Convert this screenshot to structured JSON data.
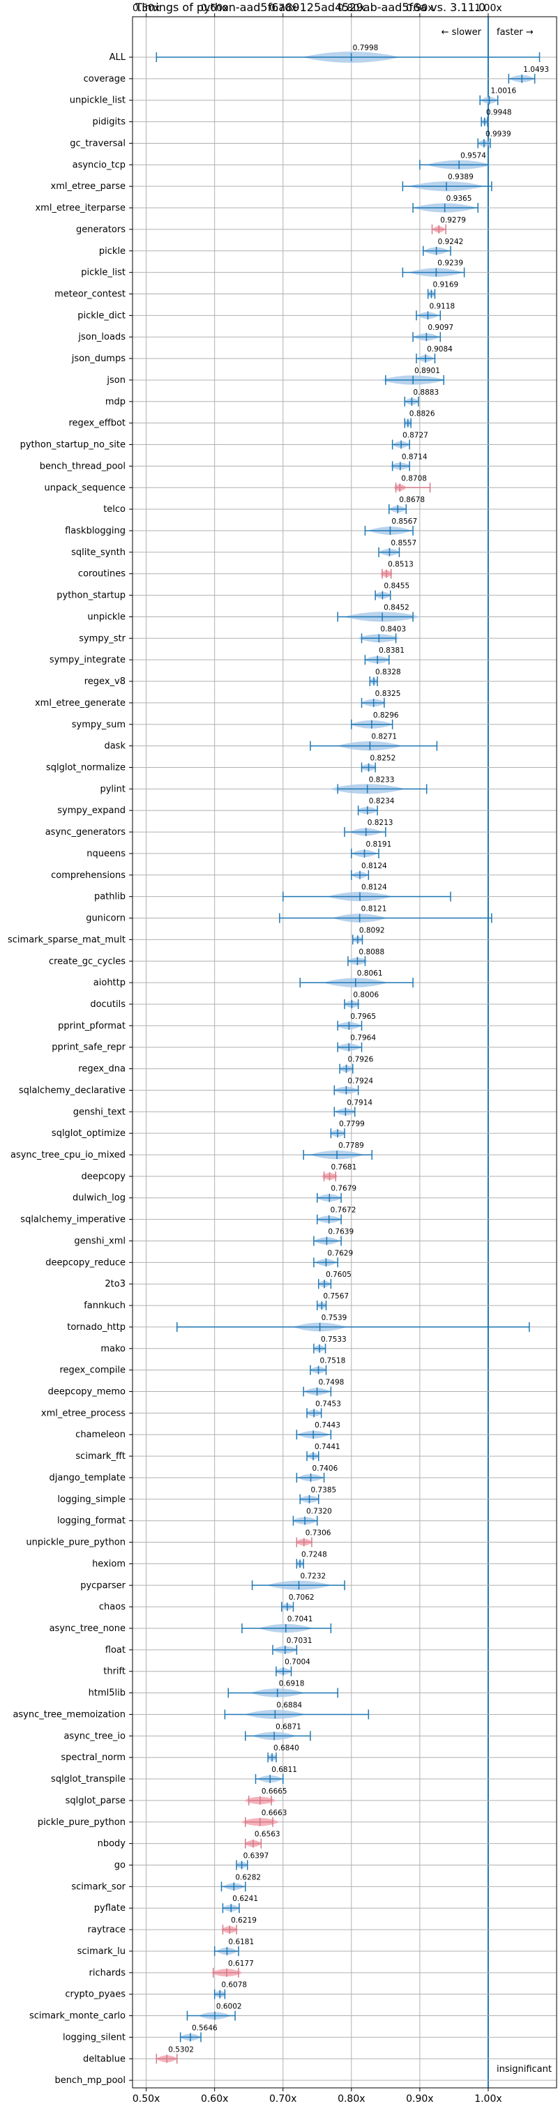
{
  "chart_data": {
    "type": "violin",
    "title": "Timings of python-aad5f6a89125ad4529ab-aad5f6a vs. 3.11.0",
    "xlim": [
      0.48,
      1.1
    ],
    "xticks": [
      0.5,
      0.6,
      0.7,
      0.8,
      0.9,
      1.0
    ],
    "xtick_labels": [
      "0.50x",
      "0.60x",
      "0.70x",
      "0.80x",
      "0.90x",
      "1.00x"
    ],
    "grid": true,
    "reference_line": 1.0,
    "slower_label": "← slower",
    "faster_label": "faster →",
    "insignificant_label": "insignificant",
    "colors": {
      "significant": "#a8c8e8",
      "significant_line": "#1f77b4",
      "insignificant": "#f4a6b0",
      "grid": "#b0b0b0"
    },
    "benchmarks": [
      {
        "name": "ALL",
        "median": 0.7998,
        "min": 0.515,
        "max": 1.075,
        "spread": 0.045,
        "label": "0.7998"
      },
      {
        "name": "coverage",
        "median": 1.0493,
        "min": 1.03,
        "max": 1.068,
        "spread": 0.012,
        "label": "1.0493"
      },
      {
        "name": "unpickle_list",
        "median": 1.0016,
        "min": 0.988,
        "max": 1.014,
        "spread": 0.008,
        "label": "1.0016"
      },
      {
        "name": "pidigits",
        "median": 0.9948,
        "min": 0.99,
        "max": 0.999,
        "spread": 0.003,
        "label": "0.9948"
      },
      {
        "name": "gc_traversal",
        "median": 0.9939,
        "min": 0.985,
        "max": 1.003,
        "spread": 0.006,
        "label": "0.9939"
      },
      {
        "name": "asyncio_tcp",
        "median": 0.9574,
        "min": 0.9,
        "max": 1.0,
        "spread": 0.03,
        "label": "0.9574"
      },
      {
        "name": "xml_etree_parse",
        "median": 0.9389,
        "min": 0.875,
        "max": 1.005,
        "spread": 0.035,
        "label": "0.9389"
      },
      {
        "name": "xml_etree_iterparse",
        "median": 0.9365,
        "min": 0.89,
        "max": 0.985,
        "spread": 0.03,
        "label": "0.9365"
      },
      {
        "name": "generators",
        "median": 0.9279,
        "min": 0.918,
        "max": 0.938,
        "spread": 0.006,
        "label": "0.9279",
        "insignificant": true
      },
      {
        "name": "pickle",
        "median": 0.9242,
        "min": 0.905,
        "max": 0.945,
        "spread": 0.012,
        "label": "0.9242"
      },
      {
        "name": "pickle_list",
        "median": 0.9239,
        "min": 0.875,
        "max": 0.965,
        "spread": 0.025,
        "label": "0.9239"
      },
      {
        "name": "meteor_contest",
        "median": 0.9169,
        "min": 0.912,
        "max": 0.922,
        "spread": 0.004,
        "label": "0.9169"
      },
      {
        "name": "pickle_dict",
        "median": 0.9118,
        "min": 0.895,
        "max": 0.93,
        "spread": 0.01,
        "label": "0.9118"
      },
      {
        "name": "json_loads",
        "median": 0.9097,
        "min": 0.89,
        "max": 0.93,
        "spread": 0.012,
        "label": "0.9097"
      },
      {
        "name": "json_dumps",
        "median": 0.9084,
        "min": 0.895,
        "max": 0.922,
        "spread": 0.008,
        "label": "0.9084"
      },
      {
        "name": "json",
        "median": 0.8901,
        "min": 0.85,
        "max": 0.935,
        "spread": 0.03,
        "label": "0.8901"
      },
      {
        "name": "mdp",
        "median": 0.8883,
        "min": 0.878,
        "max": 0.898,
        "spread": 0.007,
        "label": "0.8883"
      },
      {
        "name": "regex_effbot",
        "median": 0.8826,
        "min": 0.878,
        "max": 0.887,
        "spread": 0.004,
        "label": "0.8826"
      },
      {
        "name": "python_startup_no_site",
        "median": 0.8727,
        "min": 0.86,
        "max": 0.885,
        "spread": 0.008,
        "label": "0.8727"
      },
      {
        "name": "bench_thread_pool",
        "median": 0.8714,
        "min": 0.86,
        "max": 0.885,
        "spread": 0.01,
        "label": "0.8714"
      },
      {
        "name": "unpack_sequence",
        "median": 0.8708,
        "min": 0.865,
        "max": 0.915,
        "spread": 0.006,
        "label": "0.8708",
        "insignificant": true
      },
      {
        "name": "telco",
        "median": 0.8678,
        "min": 0.855,
        "max": 0.88,
        "spread": 0.008,
        "label": "0.8678"
      },
      {
        "name": "flaskblogging",
        "median": 0.8567,
        "min": 0.82,
        "max": 0.89,
        "spread": 0.02,
        "label": "0.8567"
      },
      {
        "name": "sqlite_synth",
        "median": 0.8557,
        "min": 0.84,
        "max": 0.87,
        "spread": 0.01,
        "label": "0.8557"
      },
      {
        "name": "coroutines",
        "median": 0.8513,
        "min": 0.845,
        "max": 0.858,
        "spread": 0.006,
        "label": "0.8513",
        "insignificant": true
      },
      {
        "name": "python_startup",
        "median": 0.8455,
        "min": 0.835,
        "max": 0.857,
        "spread": 0.008,
        "label": "0.8455"
      },
      {
        "name": "unpickle",
        "median": 0.8452,
        "min": 0.78,
        "max": 0.89,
        "spread": 0.035,
        "label": "0.8452"
      },
      {
        "name": "sympy_str",
        "median": 0.8403,
        "min": 0.815,
        "max": 0.865,
        "spread": 0.02,
        "label": "0.8403"
      },
      {
        "name": "sympy_integrate",
        "median": 0.8381,
        "min": 0.82,
        "max": 0.855,
        "spread": 0.012,
        "label": "0.8381"
      },
      {
        "name": "regex_v8",
        "median": 0.8328,
        "min": 0.827,
        "max": 0.838,
        "spread": 0.004,
        "label": "0.8328"
      },
      {
        "name": "xml_etree_generate",
        "median": 0.8325,
        "min": 0.815,
        "max": 0.848,
        "spread": 0.012,
        "label": "0.8325"
      },
      {
        "name": "sympy_sum",
        "median": 0.8296,
        "min": 0.8,
        "max": 0.86,
        "spread": 0.02,
        "label": "0.8296"
      },
      {
        "name": "dask",
        "median": 0.8271,
        "min": 0.74,
        "max": 0.925,
        "spread": 0.03,
        "label": "0.8271"
      },
      {
        "name": "sqlglot_normalize",
        "median": 0.8252,
        "min": 0.815,
        "max": 0.835,
        "spread": 0.008,
        "label": "0.8252"
      },
      {
        "name": "pylint",
        "median": 0.8233,
        "min": 0.78,
        "max": 0.91,
        "spread": 0.035,
        "label": "0.8233"
      },
      {
        "name": "sympy_expand",
        "median": 0.8234,
        "min": 0.81,
        "max": 0.838,
        "spread": 0.01,
        "label": "0.8234"
      },
      {
        "name": "async_generators",
        "median": 0.8213,
        "min": 0.79,
        "max": 0.85,
        "spread": 0.015,
        "label": "0.8213"
      },
      {
        "name": "nqueens",
        "median": 0.8191,
        "min": 0.8,
        "max": 0.84,
        "spread": 0.012,
        "label": "0.8191"
      },
      {
        "name": "comprehensions",
        "median": 0.8124,
        "min": 0.8,
        "max": 0.825,
        "spread": 0.008,
        "label": "0.8124"
      },
      {
        "name": "pathlib",
        "median": 0.8124,
        "min": 0.7,
        "max": 0.945,
        "spread": 0.03,
        "label": "0.8124"
      },
      {
        "name": "gunicorn",
        "median": 0.8121,
        "min": 0.695,
        "max": 1.005,
        "spread": 0.025,
        "label": "0.8121"
      },
      {
        "name": "scimark_sparse_mat_mult",
        "median": 0.8092,
        "min": 0.802,
        "max": 0.816,
        "spread": 0.005,
        "label": "0.8092"
      },
      {
        "name": "create_gc_cycles",
        "median": 0.8088,
        "min": 0.795,
        "max": 0.82,
        "spread": 0.01,
        "label": "0.8088"
      },
      {
        "name": "aiohttp",
        "median": 0.8061,
        "min": 0.725,
        "max": 0.89,
        "spread": 0.03,
        "label": "0.8061"
      },
      {
        "name": "docutils",
        "median": 0.8006,
        "min": 0.79,
        "max": 0.81,
        "spread": 0.008,
        "label": "0.8006"
      },
      {
        "name": "pprint_pformat",
        "median": 0.7965,
        "min": 0.78,
        "max": 0.815,
        "spread": 0.012,
        "label": "0.7965"
      },
      {
        "name": "pprint_safe_repr",
        "median": 0.7964,
        "min": 0.78,
        "max": 0.815,
        "spread": 0.012,
        "label": "0.7964"
      },
      {
        "name": "regex_dna",
        "median": 0.7926,
        "min": 0.783,
        "max": 0.802,
        "spread": 0.007,
        "label": "0.7926"
      },
      {
        "name": "sqlalchemy_declarative",
        "median": 0.7924,
        "min": 0.775,
        "max": 0.81,
        "spread": 0.012,
        "label": "0.7924"
      },
      {
        "name": "genshi_text",
        "median": 0.7914,
        "min": 0.775,
        "max": 0.805,
        "spread": 0.01,
        "label": "0.7914"
      },
      {
        "name": "sqlglot_optimize",
        "median": 0.7799,
        "min": 0.77,
        "max": 0.79,
        "spread": 0.008,
        "label": "0.7799"
      },
      {
        "name": "async_tree_cpu_io_mixed",
        "median": 0.7789,
        "min": 0.73,
        "max": 0.83,
        "spread": 0.025,
        "label": "0.7789"
      },
      {
        "name": "deepcopy",
        "median": 0.7681,
        "min": 0.76,
        "max": 0.777,
        "spread": 0.008,
        "label": "0.7681",
        "insignificant": true
      },
      {
        "name": "dulwich_log",
        "median": 0.7679,
        "min": 0.75,
        "max": 0.785,
        "spread": 0.012,
        "label": "0.7679"
      },
      {
        "name": "sqlalchemy_imperative",
        "median": 0.7672,
        "min": 0.75,
        "max": 0.785,
        "spread": 0.012,
        "label": "0.7672"
      },
      {
        "name": "genshi_xml",
        "median": 0.7639,
        "min": 0.745,
        "max": 0.785,
        "spread": 0.012,
        "label": "0.7639"
      },
      {
        "name": "deepcopy_reduce",
        "median": 0.7629,
        "min": 0.745,
        "max": 0.78,
        "spread": 0.01,
        "label": "0.7629"
      },
      {
        "name": "2to3",
        "median": 0.7605,
        "min": 0.752,
        "max": 0.77,
        "spread": 0.006,
        "label": "0.7605"
      },
      {
        "name": "fannkuch",
        "median": 0.7567,
        "min": 0.75,
        "max": 0.763,
        "spread": 0.005,
        "label": "0.7567"
      },
      {
        "name": "tornado_http",
        "median": 0.7539,
        "min": 0.545,
        "max": 1.06,
        "spread": 0.025,
        "label": "0.7539"
      },
      {
        "name": "mako",
        "median": 0.7533,
        "min": 0.745,
        "max": 0.762,
        "spread": 0.006,
        "label": "0.7533"
      },
      {
        "name": "regex_compile",
        "median": 0.7518,
        "min": 0.74,
        "max": 0.763,
        "spread": 0.008,
        "label": "0.7518"
      },
      {
        "name": "deepcopy_memo",
        "median": 0.7498,
        "min": 0.73,
        "max": 0.77,
        "spread": 0.012,
        "label": "0.7498"
      },
      {
        "name": "xml_etree_process",
        "median": 0.7453,
        "min": 0.735,
        "max": 0.756,
        "spread": 0.008,
        "label": "0.7453"
      },
      {
        "name": "chameleon",
        "median": 0.7443,
        "min": 0.72,
        "max": 0.77,
        "spread": 0.015,
        "label": "0.7443"
      },
      {
        "name": "scimark_fft",
        "median": 0.7441,
        "min": 0.735,
        "max": 0.752,
        "spread": 0.006,
        "label": "0.7441"
      },
      {
        "name": "django_template",
        "median": 0.7406,
        "min": 0.72,
        "max": 0.76,
        "spread": 0.012,
        "label": "0.7406"
      },
      {
        "name": "logging_simple",
        "median": 0.7385,
        "min": 0.725,
        "max": 0.752,
        "spread": 0.01,
        "label": "0.7385"
      },
      {
        "name": "logging_format",
        "median": 0.732,
        "min": 0.715,
        "max": 0.75,
        "spread": 0.012,
        "label": "0.7320"
      },
      {
        "name": "unpickle_pure_python",
        "median": 0.7306,
        "min": 0.72,
        "max": 0.742,
        "spread": 0.008,
        "label": "0.7306",
        "insignificant": true
      },
      {
        "name": "hexiom",
        "median": 0.7248,
        "min": 0.72,
        "max": 0.73,
        "spread": 0.004,
        "label": "0.7248"
      },
      {
        "name": "pycparser",
        "median": 0.7232,
        "min": 0.655,
        "max": 0.79,
        "spread": 0.03,
        "label": "0.7232"
      },
      {
        "name": "chaos",
        "median": 0.7062,
        "min": 0.698,
        "max": 0.715,
        "spread": 0.006,
        "label": "0.7062"
      },
      {
        "name": "async_tree_none",
        "median": 0.7041,
        "min": 0.64,
        "max": 0.77,
        "spread": 0.025,
        "label": "0.7041"
      },
      {
        "name": "float",
        "median": 0.7031,
        "min": 0.685,
        "max": 0.72,
        "spread": 0.012,
        "label": "0.7031"
      },
      {
        "name": "thrift",
        "median": 0.7004,
        "min": 0.69,
        "max": 0.712,
        "spread": 0.008,
        "label": "0.7004"
      },
      {
        "name": "html5lib",
        "median": 0.6918,
        "min": 0.62,
        "max": 0.78,
        "spread": 0.025,
        "label": "0.6918"
      },
      {
        "name": "async_tree_memoization",
        "median": 0.6884,
        "min": 0.615,
        "max": 0.825,
        "spread": 0.028,
        "label": "0.6884"
      },
      {
        "name": "async_tree_io",
        "median": 0.6871,
        "min": 0.645,
        "max": 0.74,
        "spread": 0.02,
        "label": "0.6871"
      },
      {
        "name": "spectral_norm",
        "median": 0.684,
        "min": 0.678,
        "max": 0.69,
        "spread": 0.005,
        "label": "0.6840"
      },
      {
        "name": "sqlglot_transpile",
        "median": 0.6811,
        "min": 0.66,
        "max": 0.7,
        "spread": 0.012,
        "label": "0.6811"
      },
      {
        "name": "sqlglot_parse",
        "median": 0.6665,
        "min": 0.65,
        "max": 0.683,
        "spread": 0.015,
        "label": "0.6665",
        "insignificant": true
      },
      {
        "name": "pickle_pure_python",
        "median": 0.6663,
        "min": 0.645,
        "max": 0.685,
        "spread": 0.018,
        "label": "0.6663",
        "insignificant": true
      },
      {
        "name": "nbody",
        "median": 0.6563,
        "min": 0.645,
        "max": 0.668,
        "spread": 0.008,
        "label": "0.6563",
        "insignificant": true
      },
      {
        "name": "go",
        "median": 0.6397,
        "min": 0.632,
        "max": 0.648,
        "spread": 0.006,
        "label": "0.6397"
      },
      {
        "name": "scimark_sor",
        "median": 0.6282,
        "min": 0.61,
        "max": 0.645,
        "spread": 0.01,
        "label": "0.6282"
      },
      {
        "name": "pyflate",
        "median": 0.6241,
        "min": 0.612,
        "max": 0.636,
        "spread": 0.008,
        "label": "0.6241"
      },
      {
        "name": "raytrace",
        "median": 0.6219,
        "min": 0.612,
        "max": 0.632,
        "spread": 0.008,
        "label": "0.6219",
        "insignificant": true
      },
      {
        "name": "scimark_lu",
        "median": 0.6181,
        "min": 0.6,
        "max": 0.635,
        "spread": 0.01,
        "label": "0.6181"
      },
      {
        "name": "richards",
        "median": 0.6177,
        "min": 0.598,
        "max": 0.635,
        "spread": 0.015,
        "label": "0.6177",
        "insignificant": true
      },
      {
        "name": "crypto_pyaes",
        "median": 0.6078,
        "min": 0.6,
        "max": 0.615,
        "spread": 0.006,
        "label": "0.6078"
      },
      {
        "name": "scimark_monte_carlo",
        "median": 0.6002,
        "min": 0.56,
        "max": 0.63,
        "spread": 0.015,
        "label": "0.6002"
      },
      {
        "name": "logging_silent",
        "median": 0.5646,
        "min": 0.55,
        "max": 0.58,
        "spread": 0.01,
        "label": "0.5646"
      },
      {
        "name": "deltablue",
        "median": 0.5302,
        "min": 0.515,
        "max": 0.545,
        "spread": 0.01,
        "label": "0.5302",
        "insignificant": true
      },
      {
        "name": "bench_mp_pool",
        "median": null,
        "min": null,
        "max": null,
        "spread": 0,
        "label": "",
        "insignificant_text": true
      }
    ]
  }
}
